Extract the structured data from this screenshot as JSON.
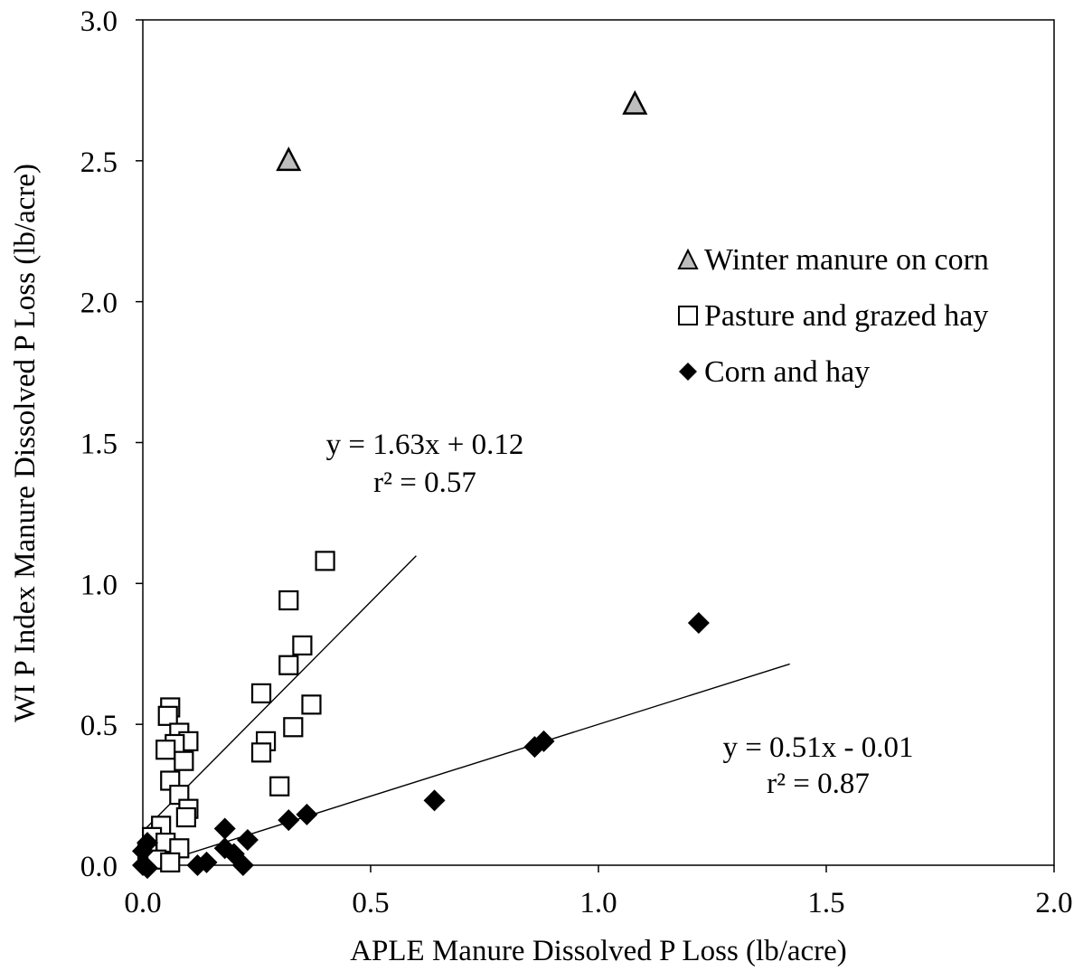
{
  "chart_data": {
    "type": "scatter",
    "title": "",
    "xlabel": "APLE Manure Dissolved P Loss (lb/acre)",
    "ylabel": "WI P Index Manure Dissolved P Loss (lb/acre)",
    "xlim": [
      0,
      2.0
    ],
    "ylim": [
      0,
      3.0
    ],
    "x_tick_labels": [
      "0.0",
      "0.5",
      "1.0",
      "1.5",
      "2.0"
    ],
    "y_tick_labels": [
      "0.0",
      "0.5",
      "1.0",
      "1.5",
      "2.0",
      "2.5",
      "3.0"
    ],
    "grid": false,
    "legend_position": "right",
    "series": [
      {
        "name": "Winter manure on corn",
        "marker": "triangle",
        "color": "#bdbdbd",
        "points": [
          {
            "x": 0.32,
            "y": 2.5
          },
          {
            "x": 1.08,
            "y": 2.7
          }
        ]
      },
      {
        "name": "Pasture and grazed hay",
        "marker": "square",
        "color": "#ffffff",
        "points": [
          {
            "x": 0.4,
            "y": 1.08
          },
          {
            "x": 0.32,
            "y": 0.94
          },
          {
            "x": 0.35,
            "y": 0.78
          },
          {
            "x": 0.32,
            "y": 0.71
          },
          {
            "x": 0.26,
            "y": 0.61
          },
          {
            "x": 0.37,
            "y": 0.57
          },
          {
            "x": 0.33,
            "y": 0.49
          },
          {
            "x": 0.27,
            "y": 0.44
          },
          {
            "x": 0.26,
            "y": 0.4
          },
          {
            "x": 0.3,
            "y": 0.28
          },
          {
            "x": 0.06,
            "y": 0.56
          },
          {
            "x": 0.055,
            "y": 0.53
          },
          {
            "x": 0.08,
            "y": 0.47
          },
          {
            "x": 0.1,
            "y": 0.44
          },
          {
            "x": 0.07,
            "y": 0.43
          },
          {
            "x": 0.05,
            "y": 0.41
          },
          {
            "x": 0.09,
            "y": 0.37
          },
          {
            "x": 0.06,
            "y": 0.3
          },
          {
            "x": 0.08,
            "y": 0.25
          },
          {
            "x": 0.1,
            "y": 0.2
          },
          {
            "x": 0.095,
            "y": 0.17
          },
          {
            "x": 0.04,
            "y": 0.14
          },
          {
            "x": 0.02,
            "y": 0.1
          },
          {
            "x": 0.05,
            "y": 0.08
          },
          {
            "x": 0.08,
            "y": 0.06
          },
          {
            "x": 0.01,
            "y": 0.04
          },
          {
            "x": 0.03,
            "y": 0.02
          },
          {
            "x": 0.06,
            "y": 0.01
          }
        ]
      },
      {
        "name": "Corn and hay",
        "marker": "diamond",
        "color": "#000000",
        "points": [
          {
            "x": 1.22,
            "y": 0.86
          },
          {
            "x": 0.88,
            "y": 0.44
          },
          {
            "x": 0.86,
            "y": 0.42
          },
          {
            "x": 0.64,
            "y": 0.23
          },
          {
            "x": 0.36,
            "y": 0.18
          },
          {
            "x": 0.32,
            "y": 0.16
          },
          {
            "x": 0.18,
            "y": 0.13
          },
          {
            "x": 0.23,
            "y": 0.09
          },
          {
            "x": 0.18,
            "y": 0.06
          },
          {
            "x": 0.2,
            "y": 0.04
          },
          {
            "x": 0.14,
            "y": 0.01
          },
          {
            "x": 0.12,
            "y": 0.0
          },
          {
            "x": 0.22,
            "y": 0.0
          },
          {
            "x": 0.01,
            "y": 0.08
          },
          {
            "x": 0.0,
            "y": 0.05
          },
          {
            "x": 0.0,
            "y": 0.0
          },
          {
            "x": 0.01,
            "y": -0.01
          }
        ]
      }
    ],
    "trendlines": [
      {
        "series": "Pasture and grazed hay",
        "slope": 1.63,
        "intercept": 0.12,
        "x_range": [
          0.0,
          0.6
        ]
      },
      {
        "series": "Corn and hay",
        "slope": 0.51,
        "intercept": -0.01,
        "x_range": [
          0.0,
          1.42
        ]
      }
    ],
    "annotations": [
      {
        "id": "eq1",
        "lines": [
          "y = 1.63x + 0.12",
          "r² = 0.57"
        ]
      },
      {
        "id": "eq2",
        "lines": [
          "y = 0.51x - 0.01",
          "r² = 0.87"
        ]
      }
    ]
  }
}
